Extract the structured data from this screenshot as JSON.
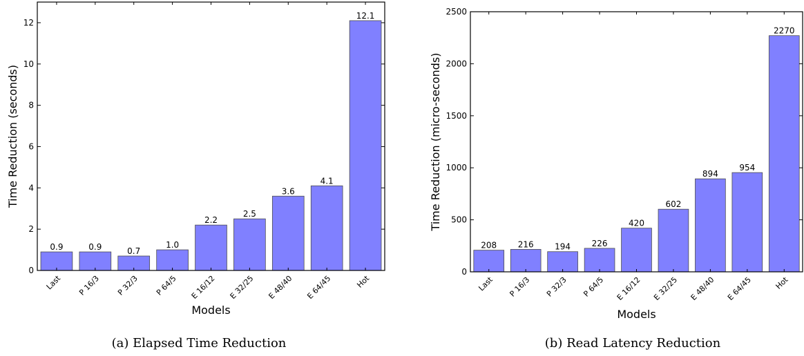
{
  "chart_data": [
    {
      "type": "bar",
      "caption": "(a) Elapsed Time Reduction",
      "xlabel": "Models",
      "ylabel": "Time Reduction (seconds)",
      "categories": [
        "Last",
        "P 16/3",
        "P 32/3",
        "P 64/5",
        "E 16/12",
        "E 32/25",
        "E 48/40",
        "E 64/45",
        "Hot"
      ],
      "values": [
        0.9,
        0.9,
        0.7,
        1.0,
        2.2,
        2.5,
        3.6,
        4.1,
        12.1
      ],
      "value_labels": [
        "0.9",
        "0.9",
        "0.7",
        "1.0",
        "2.2",
        "2.5",
        "3.6",
        "4.1",
        "12.1"
      ],
      "ylim": [
        0,
        13
      ],
      "yticks": [
        0,
        2,
        4,
        6,
        8,
        10,
        12
      ],
      "ytick_labels": [
        "0",
        "2",
        "4",
        "6",
        "8",
        "10",
        "12"
      ],
      "bar_color": "#8080ff",
      "grid": false,
      "legend": false
    },
    {
      "type": "bar",
      "caption": "(b) Read Latency Reduction",
      "xlabel": "Models",
      "ylabel": "Time Reduction (micro-seconds)",
      "categories": [
        "Last",
        "P 16/3",
        "P 32/3",
        "P 64/5",
        "E 16/12",
        "E 32/25",
        "E 48/40",
        "E 64/45",
        "Hot"
      ],
      "values": [
        208,
        216,
        194,
        226,
        420,
        602,
        894,
        954,
        2270
      ],
      "value_labels": [
        "208",
        "216",
        "194",
        "226",
        "420",
        "602",
        "894",
        "954",
        "2270"
      ],
      "ylim": [
        0,
        2500
      ],
      "yticks": [
        0,
        500,
        1000,
        1500,
        2000,
        2500
      ],
      "ytick_labels": [
        "0",
        "500",
        "1000",
        "1500",
        "2000",
        "2500"
      ],
      "bar_color": "#8080ff",
      "grid": false,
      "legend": false
    }
  ]
}
